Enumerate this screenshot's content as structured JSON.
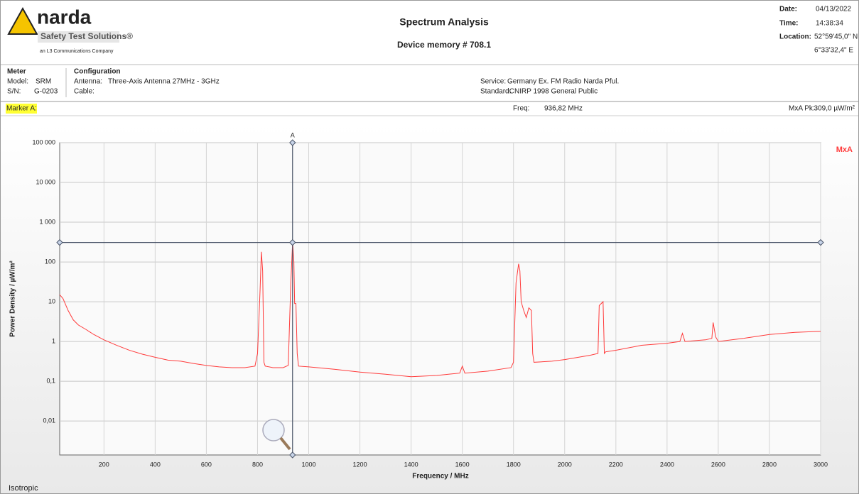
{
  "header": {
    "logo": "narda",
    "logo_tagline": "Safety Test Solutions®",
    "logo_parent": "an L3 Communications Company",
    "title": "Spectrum Analysis",
    "subtitle": "Device memory # 708.1",
    "date_label": "Date:",
    "date": "04/13/2022",
    "time_label": "Time:",
    "time": "14:38:34",
    "location_label": "Location:",
    "location_lat": "52°59'45,0\" N",
    "location_lon": "6°33'32,4\" E"
  },
  "meter": {
    "heading": "Meter",
    "model_label": "Model:",
    "model": "SRM",
    "sn_label": "S/N:",
    "sn": "G-0203"
  },
  "configuration": {
    "heading": "Configuration",
    "antenna_label": "Antenna:",
    "antenna": "Three-Axis Antenna 27MHz - 3GHz",
    "cable_label": "Cable:",
    "service_label": "Service:",
    "service": "Germany Ex. FM Radio Narda Pful.",
    "standard_label": "Standard:",
    "standard": "ICNIRP 1998 General Public"
  },
  "marker_bar": {
    "marker_label": "Marker A:",
    "freq_label": "Freq:",
    "freq": "936,82 MHz",
    "peak_label": "MxA Pk:",
    "peak": "309,0 µW/m²"
  },
  "footer": "Isotropic",
  "chart_data": {
    "type": "line",
    "x_label": "Frequency / MHz",
    "y_label": "Power Density / µW/m²",
    "log_y": true,
    "grid": true,
    "legend": "top-right",
    "xlim": [
      27,
      3000
    ],
    "ylim": [
      0.0014,
      100000
    ],
    "xticks": [
      200,
      400,
      600,
      800,
      1000,
      1200,
      1400,
      1600,
      1800,
      2000,
      2200,
      2400,
      2600,
      2800,
      3000
    ],
    "yticks": [
      {
        "value": 100000,
        "label": "100 000"
      },
      {
        "value": 10000,
        "label": "10 000"
      },
      {
        "value": 1000,
        "label": "1 000"
      },
      100,
      10,
      1,
      {
        "value": 0.1,
        "label": "0,1"
      },
      {
        "value": 0.01,
        "label": "0,01"
      }
    ],
    "marker": {
      "label": "A",
      "x": 936.82,
      "y": 309
    },
    "series": [
      {
        "name": "MxA",
        "color": "#ff3b3b",
        "x": [
          27,
          40,
          60,
          80,
          100,
          130,
          160,
          200,
          250,
          300,
          350,
          400,
          450,
          500,
          550,
          600,
          650,
          700,
          750,
          790,
          800,
          810,
          815,
          820,
          825,
          830,
          860,
          900,
          920,
          930,
          937,
          942,
          945,
          950,
          955,
          960,
          1000,
          1100,
          1200,
          1300,
          1400,
          1500,
          1590,
          1600,
          1610,
          1700,
          1790,
          1800,
          1810,
          1820,
          1825,
          1830,
          1840,
          1850,
          1860,
          1870,
          1875,
          1880,
          1950,
          2000,
          2100,
          2130,
          2135,
          2150,
          2155,
          2160,
          2200,
          2300,
          2400,
          2450,
          2460,
          2470,
          2550,
          2575,
          2580,
          2590,
          2600,
          2700,
          2800,
          2900,
          3000
        ],
        "values": [
          15,
          12,
          6,
          3.5,
          2.6,
          2,
          1.5,
          1.1,
          0.8,
          0.6,
          0.48,
          0.4,
          0.34,
          0.32,
          0.28,
          0.25,
          0.23,
          0.22,
          0.22,
          0.24,
          0.5,
          20,
          180,
          60,
          0.3,
          0.24,
          0.22,
          0.22,
          0.25,
          30,
          309,
          100,
          9,
          9,
          0.5,
          0.24,
          0.23,
          0.2,
          0.17,
          0.15,
          0.13,
          0.14,
          0.16,
          0.24,
          0.16,
          0.18,
          0.22,
          0.3,
          30,
          90,
          60,
          10,
          6,
          4,
          7,
          6,
          0.5,
          0.3,
          0.32,
          0.35,
          0.45,
          0.5,
          8,
          10,
          0.5,
          0.55,
          0.6,
          0.8,
          0.9,
          1,
          1.6,
          1,
          1.1,
          1.2,
          3,
          1.3,
          1,
          1.2,
          1.5,
          1.7,
          1.8
        ]
      }
    ]
  }
}
